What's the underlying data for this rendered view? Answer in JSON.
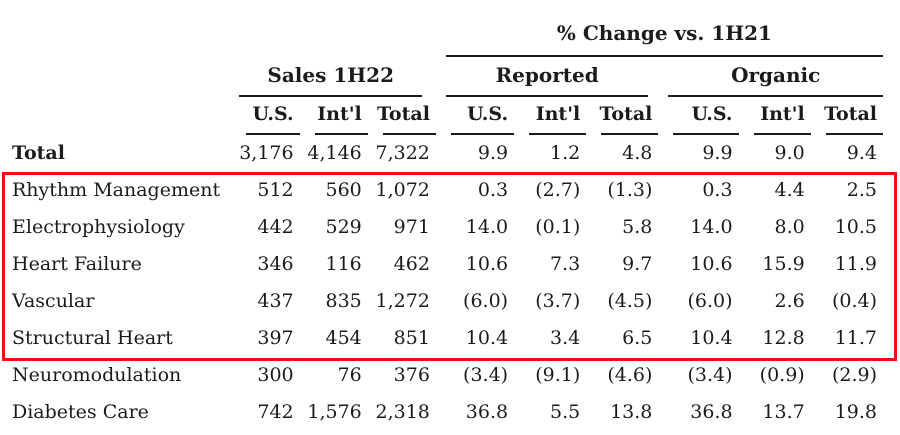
{
  "chart_data": {
    "type": "table",
    "col_group_header": "% Change vs. 1H21",
    "groups": [
      {
        "label": "Sales 1H22"
      },
      {
        "label": "Reported"
      },
      {
        "label": "Organic"
      }
    ],
    "columns": [
      "U.S.",
      "Int'l",
      "Total",
      "U.S.",
      "Int'l",
      "Total",
      "U.S.",
      "Int'l",
      "Total"
    ],
    "rows": [
      {
        "label": "Total",
        "bold": true,
        "values": [
          "3,176",
          "4,146",
          "7,322",
          "9.9",
          "1.2",
          "4.8",
          "9.9",
          "9.0",
          "9.4"
        ]
      },
      {
        "label": "Rhythm Management",
        "values": [
          "512",
          "560",
          "1,072",
          "0.3",
          "(2.7)",
          "(1.3)",
          "0.3",
          "4.4",
          "2.5"
        ]
      },
      {
        "label": "Electrophysiology",
        "values": [
          "442",
          "529",
          "971",
          "14.0",
          "(0.1)",
          "5.8",
          "14.0",
          "8.0",
          "10.5"
        ]
      },
      {
        "label": "Heart Failure",
        "values": [
          "346",
          "116",
          "462",
          "10.6",
          "7.3",
          "9.7",
          "10.6",
          "15.9",
          "11.9"
        ]
      },
      {
        "label": "Vascular",
        "values": [
          "437",
          "835",
          "1,272",
          "(6.0)",
          "(3.7)",
          "(4.5)",
          "(6.0)",
          "2.6",
          "(0.4)"
        ]
      },
      {
        "label": "Structural Heart",
        "values": [
          "397",
          "454",
          "851",
          "10.4",
          "3.4",
          "6.5",
          "10.4",
          "12.8",
          "11.7"
        ]
      },
      {
        "label": "Neuromodulation",
        "values": [
          "300",
          "76",
          "376",
          "(3.4)",
          "(9.1)",
          "(4.6)",
          "(3.4)",
          "(0.9)",
          "(2.9)"
        ]
      },
      {
        "label": "Diabetes Care",
        "values": [
          "742",
          "1,576",
          "2,318",
          "36.8",
          "5.5",
          "13.8",
          "36.8",
          "13.7",
          "19.8"
        ]
      }
    ],
    "highlight_box": {
      "color": "#ee1111",
      "rows_enclosed": [
        "Rhythm Management",
        "Electrophysiology",
        "Heart Failure",
        "Vascular",
        "Structural Heart"
      ]
    },
    "text_color": "#1b1b1b",
    "rule_color": "#1b1b1b"
  }
}
